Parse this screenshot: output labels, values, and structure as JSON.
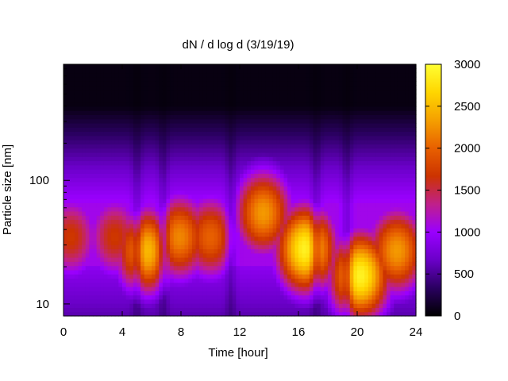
{
  "chart_data": {
    "type": "heatmap",
    "title": "dN / d log d (3/19/19)",
    "xlabel": "Time [hour]",
    "ylabel": "Particle size [nm]",
    "xlim": [
      0,
      24
    ],
    "ylim": [
      8,
      870
    ],
    "y_scale": "log",
    "x_ticks": [
      "0",
      "4",
      "8",
      "12",
      "16",
      "20",
      "24"
    ],
    "y_ticks": [
      "10",
      "100"
    ],
    "colorbar": {
      "range": [
        0,
        3000
      ],
      "ticks": [
        "0",
        "500",
        "1000",
        "1500",
        "2000",
        "2500",
        "3000"
      ],
      "palette": [
        "#000000",
        "#2a0060",
        "#6a00c8",
        "#9a00ff",
        "#c0208a",
        "#cc3300",
        "#e86000",
        "#f5a000",
        "#ffd600",
        "#ffff33"
      ]
    },
    "z_description_hint": [
      {
        "time": 0.5,
        "size": 35,
        "value": 1700
      },
      {
        "time": 3.5,
        "size": 35,
        "value": 1700
      },
      {
        "time": 5.6,
        "size": 27,
        "value": 2500
      },
      {
        "time": 7.9,
        "size": 35,
        "value": 2200
      },
      {
        "time": 10,
        "size": 35,
        "value": 2000
      },
      {
        "time": 13.6,
        "size": 55,
        "value": 2300
      },
      {
        "time": 16.5,
        "size": 28,
        "value": 2900
      },
      {
        "time": 20.2,
        "size": 17,
        "value": 2900
      },
      {
        "time": 22.7,
        "size": 27,
        "value": 2300
      }
    ]
  }
}
